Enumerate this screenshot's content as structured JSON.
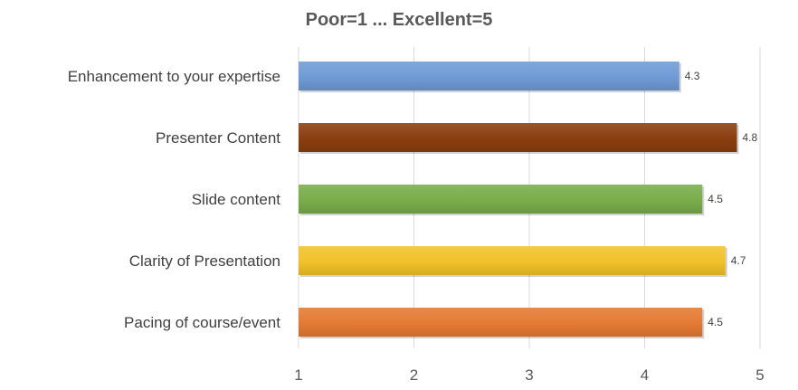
{
  "chart_data": {
    "type": "bar",
    "orientation": "horizontal",
    "title": "Poor=1 ... Excellent=5",
    "xlabel": "",
    "ylabel": "",
    "categories": [
      "Enhancement to your expertise",
      "Presenter Content",
      "Slide content",
      "Clarity of Presentation",
      "Pacing of course/event"
    ],
    "values": [
      4.3,
      4.8,
      4.5,
      4.7,
      4.5
    ],
    "value_labels": [
      "4.3",
      "4.8",
      "4.5",
      "4.7",
      "4.5"
    ],
    "colors": [
      "#6f9bd6",
      "#8b3e0f",
      "#79ad4a",
      "#f2c22a",
      "#e47a33"
    ],
    "xlim": [
      1,
      5
    ],
    "xticks": [
      1,
      2,
      3,
      4,
      5
    ],
    "xtick_labels": [
      "1",
      "2",
      "3",
      "4",
      "5"
    ],
    "grid": true,
    "legend": "none"
  }
}
